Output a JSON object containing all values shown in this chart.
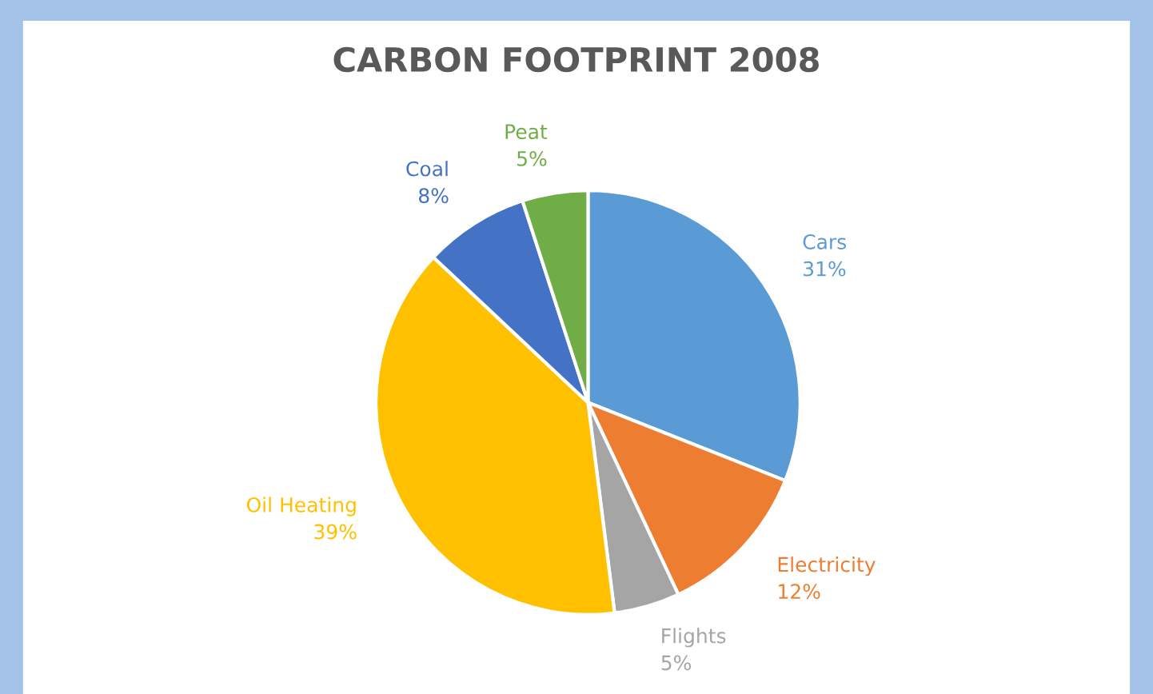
{
  "chart_data": {
    "type": "pie",
    "title": "CARBON FOOTPRINT 2008",
    "categories": [
      "Cars",
      "Electricity",
      "Flights",
      "Oil Heating",
      "Coal",
      "Peat"
    ],
    "values": [
      31,
      12,
      5,
      39,
      8,
      5
    ],
    "colors": [
      "#5b9bd5",
      "#ed7d31",
      "#a5a5a5",
      "#ffc000",
      "#4472c4",
      "#70ad47"
    ],
    "value_labels": [
      "31%",
      "12%",
      "5%",
      "39%",
      "8%",
      "5%"
    ],
    "legend": false
  }
}
